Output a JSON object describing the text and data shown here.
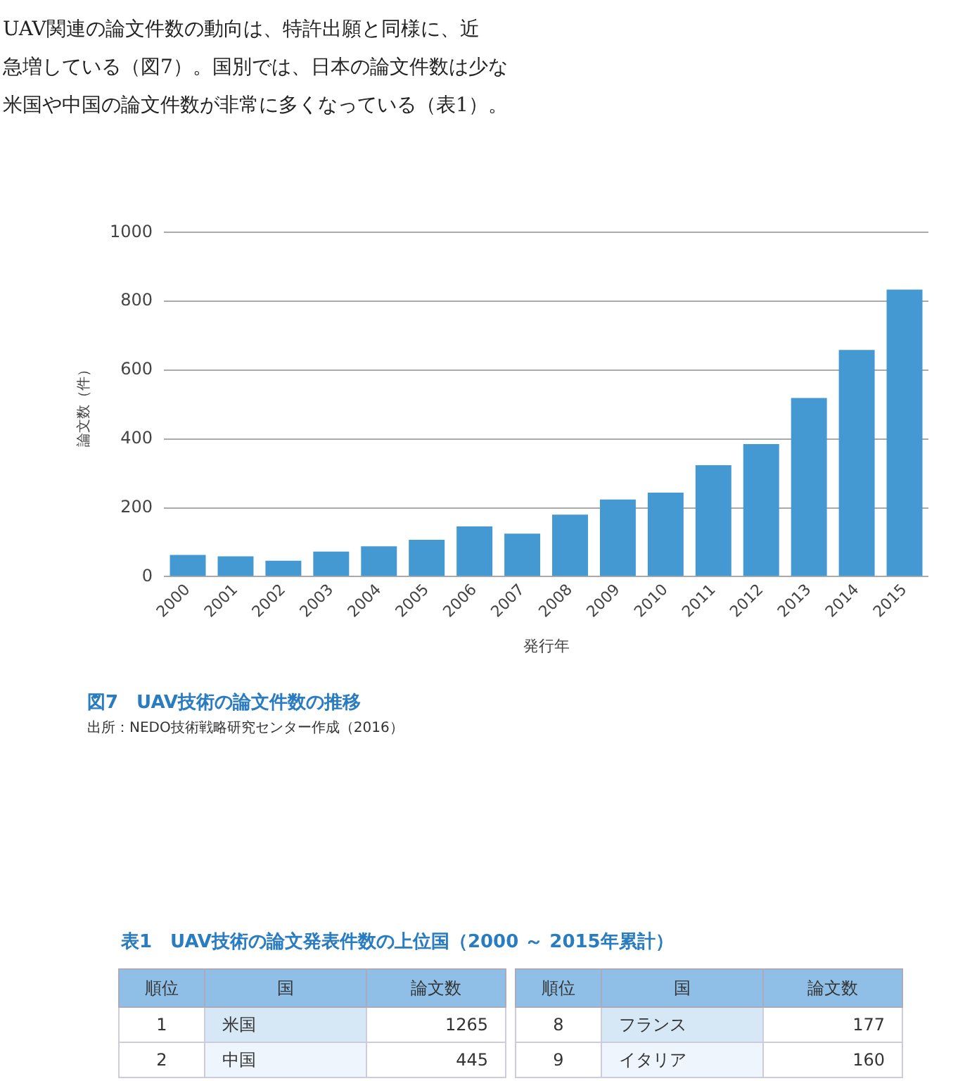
{
  "chart_data": [
    {
      "type": "bar",
      "title": "図7　UAV技術の論文件数の推移",
      "xlabel": "発行年",
      "ylabel": "論文数（件）",
      "categories": [
        "2000",
        "2001",
        "2002",
        "2003",
        "2004",
        "2005",
        "2006",
        "2007",
        "2008",
        "2009",
        "2010",
        "2011",
        "2012",
        "2013",
        "2014",
        "2015"
      ],
      "values": [
        63,
        59,
        46,
        73,
        88,
        107,
        146,
        125,
        180,
        224,
        244,
        324,
        385,
        519,
        659,
        834
      ],
      "color": "#4499d2",
      "ylim": [
        0,
        1000
      ],
      "yticks": [
        0,
        200,
        400,
        600,
        800,
        1000
      ],
      "grid": "y",
      "legend": false,
      "annotations": [
        "UAV関連の論文件数の動向は、特許出願と同様に、近",
        "急増している（図7）。国別では、日本の論文件数は少な",
        "米国や中国の論文件数が非常に多くなっている（表1）。",
        "出所：NEDO技術戦略研究センター作成（2016）"
      ]
    },
    {
      "type": "other",
      "title": "表1　UAV技術の論文発表件数の上位国（2000 ～ 2015年累計）",
      "categories": [
        "順位",
        "国",
        "論文数",
        "順位",
        "国",
        "論文数"
      ],
      "annotations": [
        "1",
        "米国",
        "1265",
        "8",
        "フランス",
        "177",
        "2",
        "中国",
        "445",
        "9",
        "イタリア",
        "160"
      ]
    }
  ]
}
